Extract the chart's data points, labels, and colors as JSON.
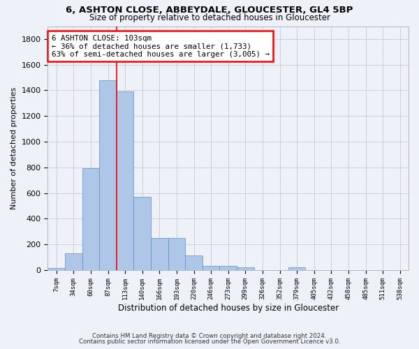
{
  "title_line1": "6, ASHTON CLOSE, ABBEYDALE, GLOUCESTER, GL4 5BP",
  "title_line2": "Size of property relative to detached houses in Gloucester",
  "xlabel": "Distribution of detached houses by size in Gloucester",
  "ylabel": "Number of detached properties",
  "bar_values": [
    15,
    130,
    795,
    1480,
    1390,
    570,
    250,
    250,
    115,
    35,
    30,
    20,
    0,
    0,
    20,
    0,
    0,
    0,
    0,
    0
  ],
  "bar_labels": [
    "7sqm",
    "34sqm",
    "60sqm",
    "87sqm",
    "113sqm",
    "140sqm",
    "166sqm",
    "193sqm",
    "220sqm",
    "246sqm",
    "273sqm",
    "299sqm",
    "326sqm",
    "352sqm",
    "379sqm",
    "405sqm",
    "432sqm",
    "458sqm",
    "485sqm",
    "511sqm",
    "538sqm"
  ],
  "bar_color": "#aec6e8",
  "bar_edge_color": "#5a8fc2",
  "grid_color": "#c8d0dc",
  "vline_color": "red",
  "annotation_text": "6 ASHTON CLOSE: 103sqm\n← 36% of detached houses are smaller (1,733)\n63% of semi-detached houses are larger (3,005) →",
  "annotation_box_color": "white",
  "annotation_box_edge": "red",
  "ylim": [
    0,
    1900
  ],
  "yticks": [
    0,
    200,
    400,
    600,
    800,
    1000,
    1200,
    1400,
    1600,
    1800
  ],
  "footer_line1": "Contains HM Land Registry data © Crown copyright and database right 2024.",
  "footer_line2": "Contains public sector information licensed under the Open Government Licence v3.0.",
  "background_color": "#eef2f8",
  "plot_background": "#eef2f8"
}
